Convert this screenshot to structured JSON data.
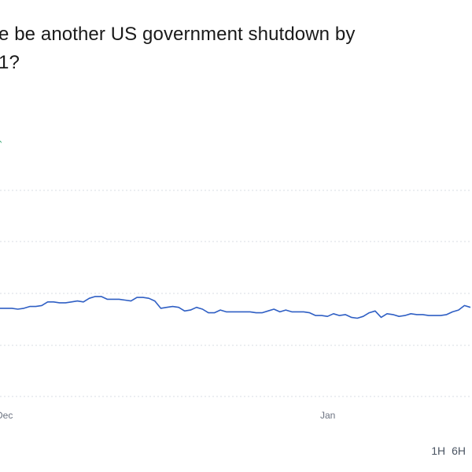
{
  "market": {
    "title_line1": "e be another US government shutdown by",
    "title_line2": "1?"
  },
  "change_indicator": {
    "glyph": "ˆ",
    "color": "#2ea36b"
  },
  "range_buttons": [
    "1H",
    "6H"
  ],
  "colors": {
    "series": "#2f5fc4",
    "gridline": "#d9dde3",
    "tick_text": "#6b7280",
    "title": "#1a1a1a"
  },
  "chart_data": {
    "type": "line",
    "x_ticks": [
      "Dec",
      "Jan"
    ],
    "grid": "horizontal-dotted",
    "series": [
      {
        "values": [
          41,
          41,
          41,
          40,
          41,
          43,
          43,
          44,
          48,
          48,
          47,
          47,
          48,
          49,
          48,
          52,
          54,
          54,
          51,
          51,
          51,
          50,
          49,
          53,
          53,
          52,
          49,
          41,
          42,
          43,
          42,
          38,
          39,
          42,
          40,
          36,
          36,
          39,
          37,
          37,
          37,
          37,
          37,
          36,
          36,
          38,
          40,
          37,
          39,
          37,
          37,
          37,
          36,
          33,
          33,
          32,
          35,
          33,
          34,
          31,
          30,
          32,
          36,
          38,
          31,
          35,
          34,
          32,
          33,
          35,
          34,
          34,
          33,
          33,
          33,
          34,
          37,
          39,
          44,
          42
        ]
      }
    ]
  }
}
